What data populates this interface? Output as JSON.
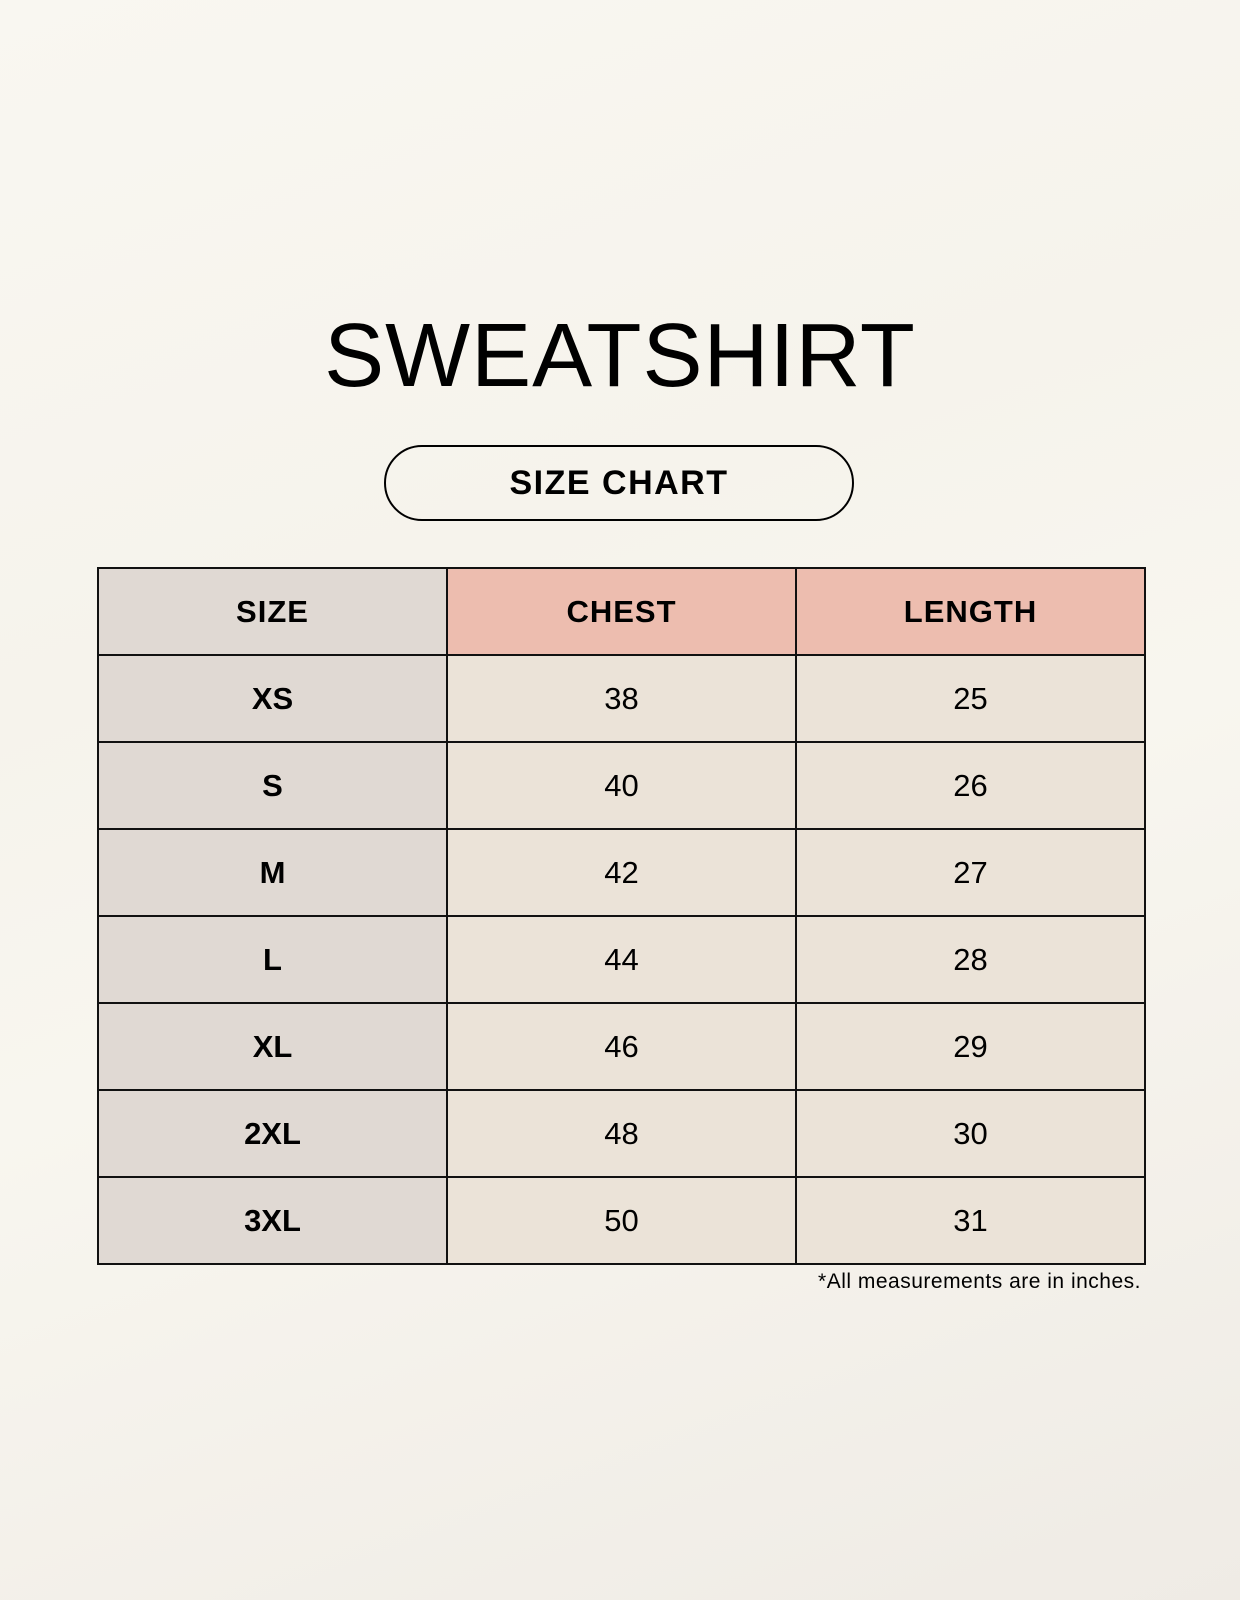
{
  "title": "SWEATSHIRT",
  "subtitle": "SIZE CHART",
  "colors": {
    "size_column": "#e0d9d3",
    "header_accent": "#edbdaf",
    "cell": "#ebe3d8",
    "border": "#111111"
  },
  "table": {
    "headers": [
      "SIZE",
      "CHEST",
      "LENGTH"
    ],
    "rows": [
      [
        "XS",
        "38",
        "25"
      ],
      [
        "S",
        "40",
        "26"
      ],
      [
        "M",
        "42",
        "27"
      ],
      [
        "L",
        "44",
        "28"
      ],
      [
        "XL",
        "46",
        "29"
      ],
      [
        "2XL",
        "48",
        "30"
      ],
      [
        "3XL",
        "50",
        "31"
      ]
    ]
  },
  "footnote": "*All measurements are in inches."
}
